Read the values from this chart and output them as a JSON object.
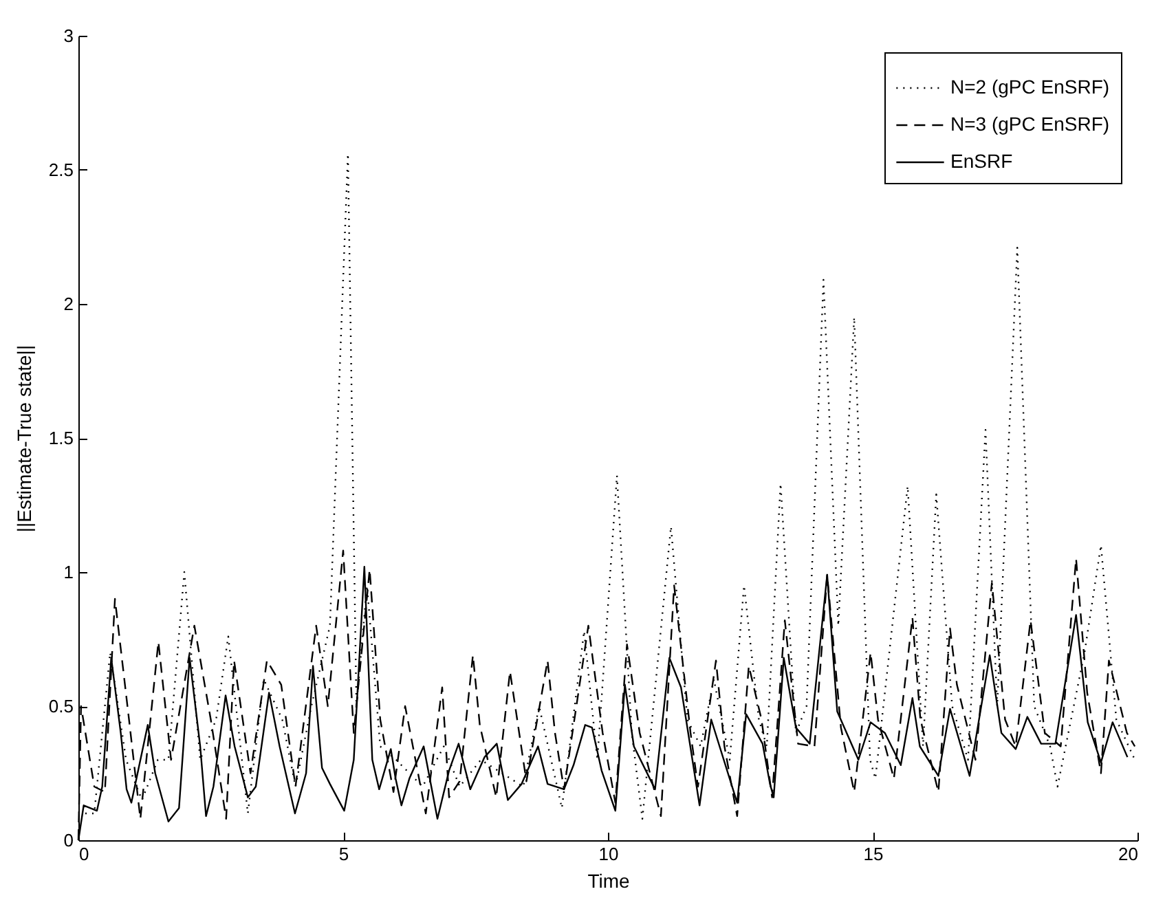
{
  "chart_data": {
    "type": "line",
    "xlabel": "Time",
    "ylabel": "||Estimate-True state||",
    "xlim": [
      0,
      20
    ],
    "ylim": [
      0,
      3
    ],
    "xticks": [
      0,
      5,
      10,
      15,
      20
    ],
    "yticks": [
      0,
      0.5,
      1,
      1.5,
      2,
      2.5,
      3
    ],
    "grid": false,
    "legend": "top right",
    "series": [
      {
        "name": "N=2 (gPC EnSRF)",
        "color": "#000000",
        "line_style": "dotted",
        "x": [
          0,
          0.3,
          0.6,
          0.9,
          1.2,
          1.5,
          1.7,
          2.0,
          2.3,
          2.6,
          2.83,
          3.2,
          3.5,
          3.85,
          4.1,
          4.4,
          4.75,
          5.09,
          5.25,
          5.45,
          5.7,
          6.0,
          6.5,
          6.9,
          7.2,
          7.6,
          8.0,
          8.4,
          8.7,
          9.13,
          9.55,
          9.8,
          10.17,
          10.45,
          10.65,
          11.19,
          11.5,
          11.75,
          12.0,
          12.3,
          12.57,
          12.85,
          13.0,
          13.26,
          13.55,
          13.75,
          14.07,
          14.35,
          14.65,
          14.95,
          15.05,
          15.66,
          15.95,
          16.2,
          16.5,
          16.8,
          17.13,
          17.35,
          17.73,
          18.05,
          18.35,
          18.49,
          19.0,
          19.31,
          19.6,
          19.95
        ],
        "values": [
          0.1,
          0.1,
          0.7,
          0.3,
          0.15,
          0.3,
          0.3,
          1.0,
          0.3,
          0.45,
          0.76,
          0.1,
          0.6,
          0.45,
          0.2,
          0.5,
          0.8,
          2.56,
          0.5,
          0.95,
          0.35,
          0.3,
          0.2,
          0.35,
          0.2,
          0.3,
          0.25,
          0.2,
          0.5,
          0.12,
          0.78,
          0.3,
          1.36,
          0.4,
          0.08,
          1.17,
          0.45,
          0.35,
          0.6,
          0.3,
          0.95,
          0.45,
          0.35,
          1.33,
          0.4,
          0.5,
          2.09,
          0.8,
          1.95,
          0.3,
          0.23,
          1.32,
          0.35,
          1.29,
          0.5,
          0.3,
          1.53,
          0.5,
          2.21,
          0.5,
          0.35,
          0.2,
          0.7,
          1.1,
          0.45,
          0.3
        ]
      },
      {
        "name": "N=3 (gPC EnSRF)",
        "color": "#000000",
        "line_style": "dashed",
        "x": [
          0,
          0.05,
          0.3,
          0.5,
          0.69,
          0.95,
          1.17,
          1.51,
          1.75,
          2.19,
          2.5,
          2.79,
          2.94,
          3.25,
          3.56,
          3.83,
          4.1,
          4.49,
          4.71,
          5.0,
          5.2,
          5.5,
          5.7,
          5.95,
          6.17,
          6.56,
          6.87,
          7.0,
          7.2,
          7.45,
          7.58,
          7.89,
          8.15,
          8.46,
          8.86,
          9.0,
          9.17,
          9.63,
          9.9,
          10.14,
          10.36,
          10.6,
          11.0,
          11.25,
          11.56,
          11.7,
          12.04,
          12.2,
          12.44,
          12.66,
          12.9,
          13.1,
          13.34,
          13.59,
          13.9,
          14.14,
          14.4,
          14.65,
          14.96,
          15.1,
          15.4,
          15.75,
          15.9,
          16.24,
          16.46,
          16.59,
          16.94,
          17.25,
          17.5,
          17.7,
          17.98,
          18.25,
          18.55,
          18.84,
          19.05,
          19.31,
          19.46,
          19.8,
          19.95
        ],
        "values": [
          0,
          0.5,
          0.2,
          0.18,
          0.9,
          0.46,
          0.08,
          0.74,
          0.3,
          0.8,
          0.45,
          0.08,
          0.67,
          0.25,
          0.67,
          0.58,
          0.2,
          0.8,
          0.5,
          1.08,
          0.4,
          1.01,
          0.45,
          0.18,
          0.5,
          0.1,
          0.57,
          0.16,
          0.22,
          0.69,
          0.43,
          0.16,
          0.63,
          0.22,
          0.67,
          0.4,
          0.19,
          0.8,
          0.4,
          0.14,
          0.73,
          0.4,
          0.09,
          0.95,
          0.4,
          0.2,
          0.67,
          0.35,
          0.09,
          0.65,
          0.45,
          0.16,
          0.82,
          0.36,
          0.35,
          0.99,
          0.42,
          0.18,
          0.7,
          0.45,
          0.23,
          0.83,
          0.45,
          0.18,
          0.79,
          0.58,
          0.3,
          0.96,
          0.45,
          0.35,
          0.82,
          0.4,
          0.35,
          1.05,
          0.55,
          0.25,
          0.67,
          0.4,
          0.35
        ]
      },
      {
        "name": "EnSRF",
        "color": "#000000",
        "line_style": "solid",
        "x": [
          0,
          0.1,
          0.35,
          0.45,
          0.62,
          0.8,
          0.91,
          1.0,
          1.31,
          1.45,
          1.7,
          1.9,
          2.1,
          2.3,
          2.41,
          2.55,
          2.78,
          2.95,
          3.2,
          3.35,
          3.6,
          3.8,
          4.09,
          4.3,
          4.43,
          4.6,
          4.75,
          5.02,
          5.2,
          5.4,
          5.55,
          5.68,
          5.9,
          5.99,
          6.1,
          6.25,
          6.52,
          6.78,
          7.0,
          7.18,
          7.4,
          7.67,
          7.9,
          8.11,
          8.37,
          8.68,
          8.86,
          9.17,
          9.35,
          9.57,
          9.7,
          9.88,
          10.14,
          10.32,
          10.49,
          10.89,
          11.16,
          11.38,
          11.73,
          11.95,
          12.44,
          12.61,
          12.92,
          13.06,
          13.13,
          13.32,
          13.55,
          13.81,
          14.14,
          14.33,
          14.73,
          14.96,
          15.23,
          15.53,
          15.75,
          15.89,
          16.24,
          16.46,
          16.83,
          17.21,
          17.43,
          17.7,
          17.92,
          18.18,
          18.45,
          18.84,
          19.06,
          19.31,
          19.53,
          19.81
        ],
        "values": [
          0,
          0.13,
          0.11,
          0.2,
          0.68,
          0.4,
          0.19,
          0.14,
          0.43,
          0.25,
          0.07,
          0.12,
          0.68,
          0.35,
          0.09,
          0.2,
          0.54,
          0.35,
          0.16,
          0.2,
          0.55,
          0.35,
          0.1,
          0.25,
          0.65,
          0.27,
          0.21,
          0.11,
          0.3,
          1.02,
          0.3,
          0.19,
          0.34,
          0.23,
          0.13,
          0.23,
          0.35,
          0.08,
          0.26,
          0.36,
          0.19,
          0.31,
          0.36,
          0.15,
          0.21,
          0.35,
          0.21,
          0.19,
          0.28,
          0.43,
          0.42,
          0.26,
          0.11,
          0.58,
          0.35,
          0.19,
          0.68,
          0.57,
          0.13,
          0.45,
          0.14,
          0.47,
          0.36,
          0.21,
          0.16,
          0.68,
          0.42,
          0.36,
          0.99,
          0.48,
          0.3,
          0.44,
          0.4,
          0.28,
          0.53,
          0.35,
          0.24,
          0.49,
          0.24,
          0.69,
          0.4,
          0.34,
          0.46,
          0.36,
          0.36,
          0.84,
          0.44,
          0.29,
          0.44,
          0.31
        ]
      }
    ]
  }
}
